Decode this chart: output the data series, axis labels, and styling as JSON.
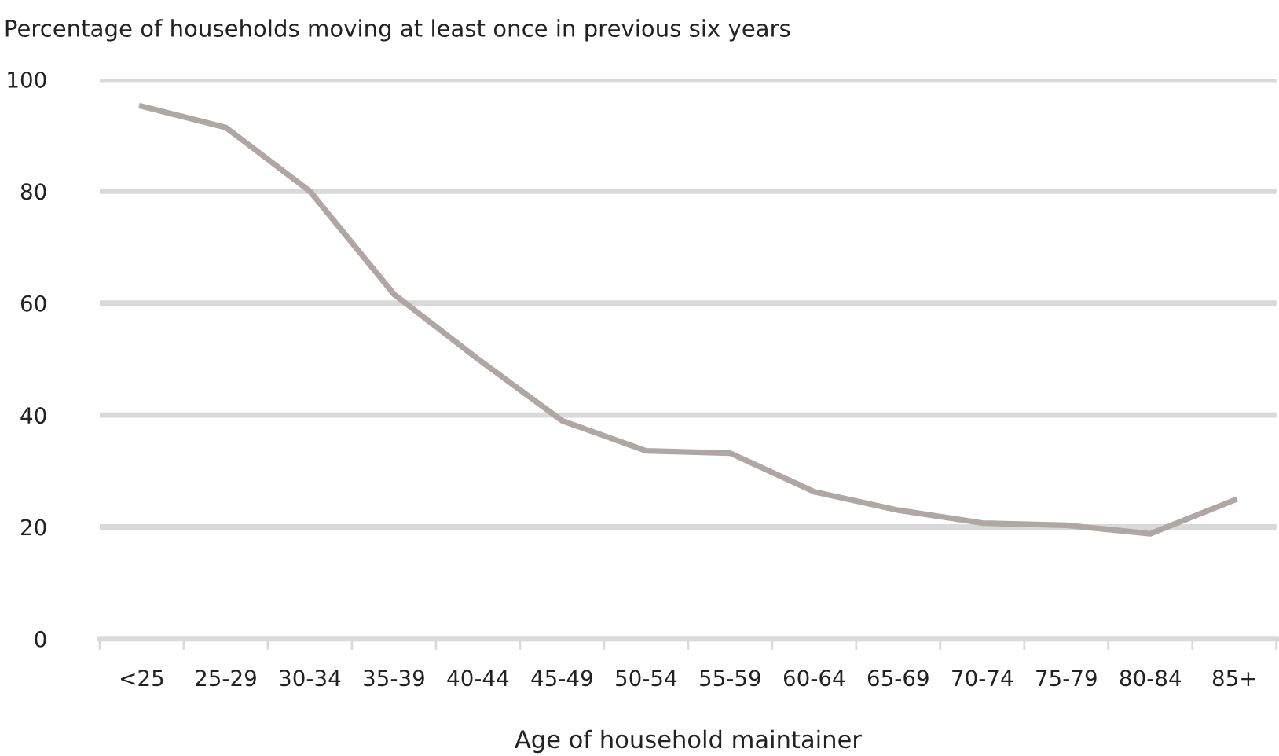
{
  "chart_data": {
    "type": "line",
    "title": "Percentage of households moving at least once in previous six years",
    "xlabel": "Age of household maintainer",
    "categories": [
      "<25",
      "25-29",
      "30-34",
      "35-39",
      "40-44",
      "45-49",
      "50-54",
      "55-59",
      "60-64",
      "65-69",
      "70-74",
      "75-79",
      "80-84",
      "85+"
    ],
    "series": [
      {
        "color": "#b0a7a5",
        "values": [
          95.2,
          91.4,
          80,
          61.6,
          50,
          39,
          33.6,
          33.2,
          26.3,
          23,
          20.7,
          20.3,
          18.8,
          24.8
        ]
      }
    ],
    "ylim": [
      0,
      100
    ],
    "yticks": [
      0,
      20,
      40,
      60,
      80,
      100
    ],
    "grid": "y",
    "marker": "none",
    "line_style": "solid"
  }
}
